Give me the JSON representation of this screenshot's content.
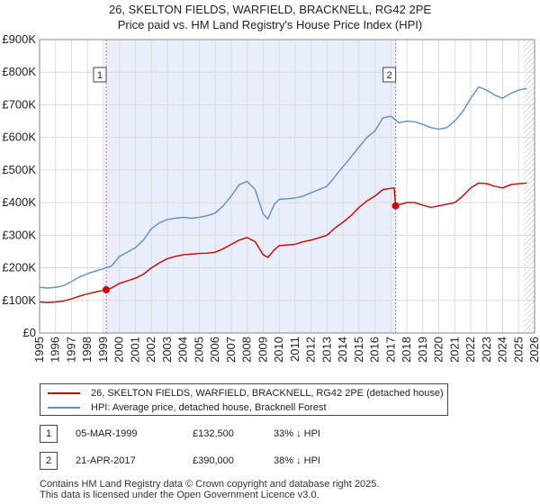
{
  "header": {
    "title_line1": "26, SKELTON FIELDS, WARFIELD, BRACKNELL, RG42 2PE",
    "title_line2": "Price paid vs. HM Land Registry's House Price Index (HPI)"
  },
  "colors": {
    "property_line": "#cc0000",
    "hpi_line": "#5b8ed6",
    "shade": "#e8eefb",
    "grid": "#dcdcdc",
    "marker_line": "#e06060"
  },
  "chart_data": {
    "type": "line",
    "title": "Price paid vs. HM Land Registry's House Price Index (HPI)",
    "xlabel": "",
    "ylabel": "",
    "xlim": [
      1995,
      2026
    ],
    "ylim": [
      0,
      900000
    ],
    "grid": true,
    "x_ticks": [
      "1995",
      "1996",
      "1997",
      "1998",
      "1999",
      "2000",
      "2001",
      "2002",
      "2003",
      "2004",
      "2005",
      "2006",
      "2007",
      "2008",
      "2009",
      "2010",
      "2011",
      "2012",
      "2013",
      "2014",
      "2015",
      "2016",
      "2017",
      "2018",
      "2019",
      "2020",
      "2021",
      "2022",
      "2023",
      "2024",
      "2025",
      "2026"
    ],
    "y_ticks": [
      {
        "value": 0,
        "label": "£0"
      },
      {
        "value": 100000,
        "label": "£100K"
      },
      {
        "value": 200000,
        "label": "£200K"
      },
      {
        "value": 300000,
        "label": "£300K"
      },
      {
        "value": 400000,
        "label": "£400K"
      },
      {
        "value": 500000,
        "label": "£500K"
      },
      {
        "value": 600000,
        "label": "£600K"
      },
      {
        "value": 700000,
        "label": "£700K"
      },
      {
        "value": 800000,
        "label": "£800K"
      },
      {
        "value": 900000,
        "label": "£900K"
      }
    ],
    "shaded_range": [
      1999.17,
      2017.3
    ],
    "future_hatch_start": 2025.3,
    "series": [
      {
        "name": "26, SKELTON FIELDS, WARFIELD, BRACKNELL, RG42 2PE (detached house)",
        "color": "#cc0000",
        "x": [
          1995,
          1995.5,
          1996,
          1996.5,
          1997,
          1997.5,
          1998,
          1998.5,
          1999.17,
          1999.5,
          2000,
          2000.5,
          2001,
          2001.5,
          2002,
          2002.5,
          2003,
          2003.5,
          2004,
          2004.5,
          2005,
          2005.5,
          2006,
          2006.5,
          2007,
          2007.5,
          2008,
          2008.5,
          2009,
          2009.3,
          2009.7,
          2010,
          2010.5,
          2011,
          2011.5,
          2012,
          2012.5,
          2013,
          2013.5,
          2014,
          2014.5,
          2015,
          2015.5,
          2016,
          2016.5,
          2017.2,
          2017.3,
          2017.6,
          2018,
          2018.5,
          2019,
          2019.5,
          2020,
          2020.5,
          2021,
          2021.5,
          2022,
          2022.5,
          2023,
          2023.5,
          2024,
          2024.5,
          2025,
          2025.5
        ],
        "values": [
          95000,
          94000,
          95000,
          98000,
          105000,
          113000,
          120000,
          126000,
          132500,
          138000,
          152000,
          160000,
          168000,
          180000,
          200000,
          215000,
          228000,
          235000,
          240000,
          242000,
          244000,
          245000,
          248000,
          258000,
          272000,
          285000,
          293000,
          280000,
          240000,
          232000,
          255000,
          268000,
          270000,
          272000,
          280000,
          285000,
          292000,
          300000,
          322000,
          340000,
          360000,
          385000,
          405000,
          420000,
          440000,
          445000,
          390000,
          395000,
          400000,
          400000,
          392000,
          385000,
          390000,
          395000,
          400000,
          420000,
          445000,
          460000,
          458000,
          450000,
          445000,
          455000,
          458000,
          460000
        ]
      },
      {
        "name": "HPI: Average price, detached house, Bracknell Forest",
        "color": "#5b8ed6",
        "x": [
          1995,
          1995.5,
          1996,
          1996.5,
          1997,
          1997.5,
          1998,
          1998.5,
          1999,
          1999.5,
          2000,
          2000.5,
          2001,
          2001.5,
          2002,
          2002.5,
          2003,
          2003.5,
          2004,
          2004.5,
          2005,
          2005.5,
          2006,
          2006.5,
          2007,
          2007.5,
          2008,
          2008.5,
          2009,
          2009.3,
          2009.7,
          2010,
          2010.5,
          2011,
          2011.5,
          2012,
          2012.5,
          2013,
          2013.5,
          2014,
          2014.5,
          2015,
          2015.5,
          2016,
          2016.5,
          2017,
          2017.5,
          2018,
          2018.5,
          2019,
          2019.5,
          2020,
          2020.5,
          2021,
          2021.5,
          2022,
          2022.5,
          2023,
          2023.5,
          2024,
          2024.5,
          2025,
          2025.5
        ],
        "values": [
          140000,
          138000,
          140000,
          145000,
          158000,
          172000,
          182000,
          190000,
          197000,
          205000,
          235000,
          248000,
          262000,
          285000,
          320000,
          338000,
          348000,
          352000,
          355000,
          352000,
          355000,
          360000,
          368000,
          390000,
          420000,
          455000,
          465000,
          440000,
          365000,
          350000,
          395000,
          410000,
          412000,
          414000,
          420000,
          430000,
          440000,
          450000,
          480000,
          510000,
          540000,
          570000,
          600000,
          620000,
          660000,
          665000,
          645000,
          650000,
          648000,
          640000,
          630000,
          625000,
          630000,
          650000,
          680000,
          720000,
          755000,
          745000,
          730000,
          720000,
          735000,
          745000,
          750000
        ]
      }
    ],
    "annotations": [
      {
        "label": "1",
        "x": 1999.17,
        "y": 132500
      },
      {
        "label": "2",
        "x": 2017.3,
        "y": 390000
      }
    ]
  },
  "legend": {
    "items": [
      {
        "label": "26, SKELTON FIELDS, WARFIELD, BRACKNELL, RG42 2PE (detached house)",
        "color": "#cc0000"
      },
      {
        "label": "HPI: Average price, detached house, Bracknell Forest",
        "color": "#5b8ed6"
      }
    ]
  },
  "transactions": [
    {
      "label": "1",
      "date": "05-MAR-1999",
      "price": "£132,500",
      "hpi": "33% ↓ HPI"
    },
    {
      "label": "2",
      "date": "21-APR-2017",
      "price": "£390,000",
      "hpi": "38% ↓ HPI"
    }
  ],
  "footer": {
    "line1": "Contains HM Land Registry data © Crown copyright and database right 2025.",
    "line2": "This data is licensed under the Open Government Licence v3.0."
  }
}
